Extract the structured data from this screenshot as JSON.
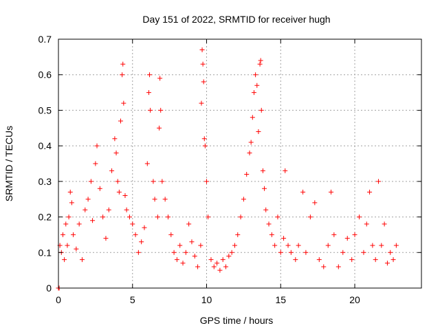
{
  "chart_data": {
    "type": "scatter",
    "title": "Day 151 of 2022, SRMTID for receiver hugh",
    "xlabel": "GPS time / hours",
    "ylabel": "SRMTID / TECUs",
    "xlim": [
      0,
      24.5
    ],
    "ylim": [
      0,
      0.7
    ],
    "xticks": [
      0,
      5,
      10,
      15,
      20
    ],
    "xtick_labels": [
      "0",
      "5",
      "10",
      "15",
      "20"
    ],
    "yticks": [
      0,
      0.1,
      0.2,
      0.3,
      0.4,
      0.5,
      0.6,
      0.7
    ],
    "ytick_labels": [
      "0",
      "0.1",
      "0.2",
      "0.3",
      "0.4",
      "0.5",
      "0.6",
      "0.7"
    ],
    "grid": true,
    "marker": "plus",
    "color": "#ff0000",
    "series": [
      {
        "name": "SRMTID",
        "points": [
          [
            0.0,
            0.0
          ],
          [
            0.05,
            0.0
          ],
          [
            0.1,
            0.12
          ],
          [
            0.2,
            0.1
          ],
          [
            0.3,
            0.15
          ],
          [
            0.4,
            0.08
          ],
          [
            0.5,
            0.18
          ],
          [
            0.6,
            0.12
          ],
          [
            0.7,
            0.2
          ],
          [
            0.8,
            0.27
          ],
          [
            0.9,
            0.24
          ],
          [
            1.0,
            0.15
          ],
          [
            1.2,
            0.11
          ],
          [
            1.4,
            0.18
          ],
          [
            1.6,
            0.08
          ],
          [
            1.8,
            0.22
          ],
          [
            2.0,
            0.25
          ],
          [
            2.2,
            0.3
          ],
          [
            2.3,
            0.19
          ],
          [
            2.5,
            0.35
          ],
          [
            2.6,
            0.4
          ],
          [
            2.8,
            0.28
          ],
          [
            3.0,
            0.2
          ],
          [
            3.2,
            0.14
          ],
          [
            3.4,
            0.22
          ],
          [
            3.6,
            0.33
          ],
          [
            3.8,
            0.42
          ],
          [
            3.9,
            0.38
          ],
          [
            4.0,
            0.3
          ],
          [
            4.1,
            0.27
          ],
          [
            4.2,
            0.47
          ],
          [
            4.3,
            0.6
          ],
          [
            4.35,
            0.63
          ],
          [
            4.4,
            0.52
          ],
          [
            4.5,
            0.26
          ],
          [
            4.6,
            0.22
          ],
          [
            4.8,
            0.2
          ],
          [
            5.0,
            0.18
          ],
          [
            5.2,
            0.15
          ],
          [
            5.4,
            0.1
          ],
          [
            5.6,
            0.13
          ],
          [
            5.8,
            0.17
          ],
          [
            6.0,
            0.35
          ],
          [
            6.1,
            0.55
          ],
          [
            6.15,
            0.6
          ],
          [
            6.2,
            0.5
          ],
          [
            6.4,
            0.3
          ],
          [
            6.5,
            0.25
          ],
          [
            6.7,
            0.2
          ],
          [
            6.8,
            0.45
          ],
          [
            6.85,
            0.59
          ],
          [
            6.9,
            0.5
          ],
          [
            7.0,
            0.3
          ],
          [
            7.2,
            0.25
          ],
          [
            7.4,
            0.2
          ],
          [
            7.6,
            0.15
          ],
          [
            7.8,
            0.1
          ],
          [
            8.0,
            0.08
          ],
          [
            8.2,
            0.12
          ],
          [
            8.4,
            0.07
          ],
          [
            8.6,
            0.1
          ],
          [
            8.8,
            0.18
          ],
          [
            9.0,
            0.13
          ],
          [
            9.2,
            0.09
          ],
          [
            9.4,
            0.06
          ],
          [
            9.6,
            0.12
          ],
          [
            9.65,
            0.52
          ],
          [
            9.7,
            0.67
          ],
          [
            9.75,
            0.63
          ],
          [
            9.8,
            0.58
          ],
          [
            9.85,
            0.42
          ],
          [
            9.9,
            0.4
          ],
          [
            10.0,
            0.3
          ],
          [
            10.1,
            0.2
          ],
          [
            10.3,
            0.08
          ],
          [
            10.5,
            0.06
          ],
          [
            10.7,
            0.07
          ],
          [
            10.9,
            0.05
          ],
          [
            11.1,
            0.08
          ],
          [
            11.3,
            0.06
          ],
          [
            11.5,
            0.09
          ],
          [
            11.7,
            0.1
          ],
          [
            11.9,
            0.12
          ],
          [
            12.1,
            0.15
          ],
          [
            12.3,
            0.2
          ],
          [
            12.5,
            0.25
          ],
          [
            12.7,
            0.32
          ],
          [
            12.9,
            0.38
          ],
          [
            13.0,
            0.41
          ],
          [
            13.1,
            0.48
          ],
          [
            13.2,
            0.55
          ],
          [
            13.3,
            0.6
          ],
          [
            13.4,
            0.57
          ],
          [
            13.5,
            0.44
          ],
          [
            13.6,
            0.63
          ],
          [
            13.65,
            0.64
          ],
          [
            13.7,
            0.5
          ],
          [
            13.8,
            0.33
          ],
          [
            13.9,
            0.28
          ],
          [
            14.0,
            0.22
          ],
          [
            14.2,
            0.18
          ],
          [
            14.4,
            0.15
          ],
          [
            14.6,
            0.12
          ],
          [
            14.8,
            0.2
          ],
          [
            15.0,
            0.1
          ],
          [
            15.2,
            0.14
          ],
          [
            15.3,
            0.33
          ],
          [
            15.5,
            0.12
          ],
          [
            15.7,
            0.1
          ],
          [
            16.0,
            0.08
          ],
          [
            16.2,
            0.12
          ],
          [
            16.5,
            0.27
          ],
          [
            16.7,
            0.1
          ],
          [
            17.0,
            0.2
          ],
          [
            17.3,
            0.24
          ],
          [
            17.6,
            0.08
          ],
          [
            17.9,
            0.06
          ],
          [
            18.2,
            0.12
          ],
          [
            18.4,
            0.27
          ],
          [
            18.6,
            0.15
          ],
          [
            18.9,
            0.06
          ],
          [
            19.2,
            0.1
          ],
          [
            19.5,
            0.14
          ],
          [
            19.8,
            0.08
          ],
          [
            20.0,
            0.15
          ],
          [
            20.3,
            0.2
          ],
          [
            20.6,
            0.1
          ],
          [
            20.8,
            0.18
          ],
          [
            21.0,
            0.27
          ],
          [
            21.2,
            0.12
          ],
          [
            21.4,
            0.08
          ],
          [
            21.6,
            0.3
          ],
          [
            21.8,
            0.12
          ],
          [
            22.0,
            0.18
          ],
          [
            22.2,
            0.07
          ],
          [
            22.4,
            0.1
          ],
          [
            22.6,
            0.08
          ],
          [
            22.8,
            0.12
          ]
        ]
      }
    ]
  }
}
